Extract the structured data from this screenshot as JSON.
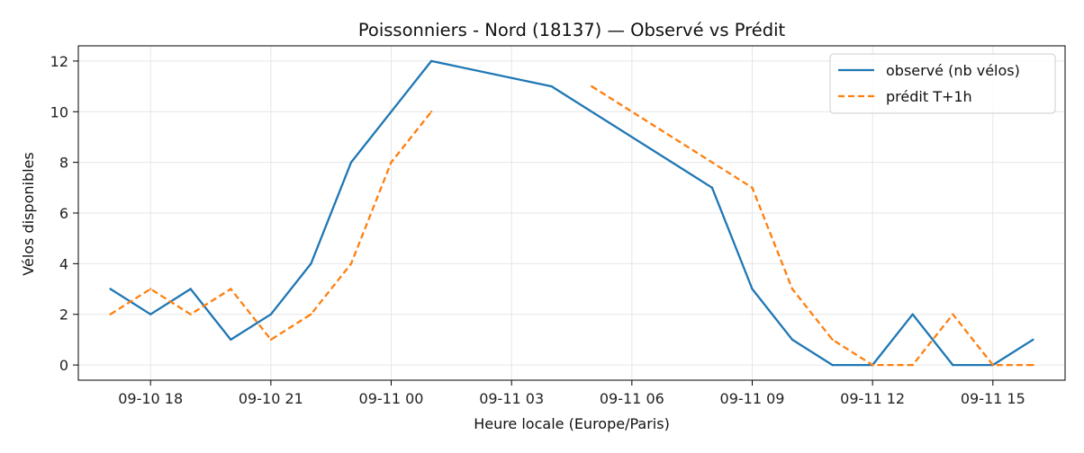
{
  "chart_data": {
    "type": "line",
    "title": "Poissonniers - Nord (18137) — Observé vs Prédit",
    "xlabel": "Heure locale (Europe/Paris)",
    "ylabel": "Vélos disponibles",
    "x_ticks": [
      "09-10 18",
      "09-10 21",
      "09-11 00",
      "09-11 03",
      "09-11 06",
      "09-11 09",
      "09-11 12",
      "09-11 15"
    ],
    "y_ticks": [
      "0",
      "2",
      "4",
      "6",
      "8",
      "10",
      "12"
    ],
    "xlim": [
      "2025-09-10T16:12",
      "2025-09-11T16:48"
    ],
    "ylim": [
      -0.6,
      12.6
    ],
    "grid": true,
    "legend_position": "top-right",
    "series": [
      {
        "name": "observé (nb vélos)",
        "color": "#1f77b4",
        "style": "solid",
        "x": [
          "2025-09-10T17:00",
          "2025-09-10T18:00",
          "2025-09-10T19:00",
          "2025-09-10T20:00",
          "2025-09-10T21:00",
          "2025-09-10T22:00",
          "2025-09-10T23:00",
          "2025-09-11T00:00",
          "2025-09-11T01:00",
          "2025-09-11T04:00",
          "2025-09-11T08:00",
          "2025-09-11T09:00",
          "2025-09-11T10:00",
          "2025-09-11T11:00",
          "2025-09-11T12:00",
          "2025-09-11T13:00",
          "2025-09-11T14:00",
          "2025-09-11T15:00",
          "2025-09-11T16:00"
        ],
        "values": [
          3,
          2,
          3,
          1,
          2,
          4,
          8,
          10,
          12,
          11,
          7,
          3,
          1,
          0,
          0,
          2,
          0,
          0,
          1
        ]
      },
      {
        "name": "prédit T+1h",
        "color": "#ff7f0e",
        "style": "dashed",
        "x": [
          "2025-09-10T17:00",
          "2025-09-10T18:00",
          "2025-09-10T19:00",
          "2025-09-10T20:00",
          "2025-09-10T21:00",
          "2025-09-10T22:00",
          "2025-09-10T23:00",
          "2025-09-11T00:00",
          "2025-09-11T01:00",
          null,
          "2025-09-11T05:00",
          "2025-09-11T09:00",
          "2025-09-11T10:00",
          "2025-09-11T11:00",
          "2025-09-11T12:00",
          "2025-09-11T13:00",
          "2025-09-11T14:00",
          "2025-09-11T15:00",
          "2025-09-11T16:00"
        ],
        "values": [
          2,
          3,
          2,
          3,
          1,
          2,
          4,
          8,
          10,
          null,
          11,
          7,
          3,
          1,
          0,
          0,
          2,
          0,
          0
        ]
      }
    ]
  }
}
